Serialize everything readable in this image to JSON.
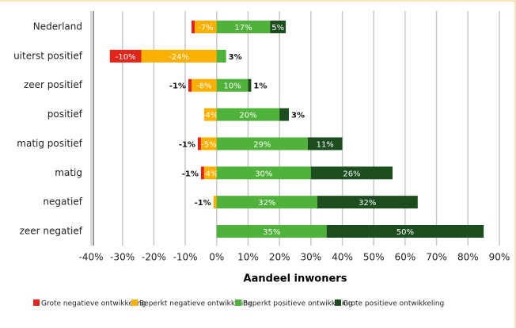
{
  "chart_data": {
    "type": "diverging_stacked_bar",
    "xlabel": "Aandeel inwoners",
    "categories": [
      "Nederland",
      "uiterst positief",
      "zeer positief",
      "positief",
      "matig positief",
      "matig",
      "negatief",
      "zeer negatief"
    ],
    "series": [
      {
        "name": "Grote negatieve ontwikkeling",
        "color": "#e3241b",
        "values": [
          -1,
          -10,
          -1,
          0,
          -1,
          -1,
          0,
          0
        ],
        "value_labels": [
          null,
          "-10%",
          "-1%",
          null,
          "-1%",
          "-1%",
          null,
          null
        ]
      },
      {
        "name": "Beperkt negatieve ontwikkeling",
        "color": "#f9b000",
        "values": [
          -7,
          -24,
          -8,
          -4,
          -5,
          -4,
          -1,
          0
        ],
        "value_labels": [
          "-7%",
          "-24%",
          "-8%",
          "-4%",
          "-5%",
          "-4%",
          "-1%",
          null
        ]
      },
      {
        "name": "Beperkt positieve ontwikkeling",
        "color": "#4fb23a",
        "values": [
          17,
          3,
          10,
          20,
          29,
          30,
          32,
          35
        ],
        "value_labels": [
          "17%",
          "3%",
          "10%",
          "20%",
          "29%",
          "30%",
          "32%",
          "35%"
        ]
      },
      {
        "name": "Grote positieve ontwikkeling",
        "color": "#1b4d1f",
        "values": [
          5,
          0,
          1,
          3,
          11,
          26,
          32,
          50
        ],
        "value_labels": [
          "5%",
          null,
          "1%",
          "3%",
          "11%",
          "26%",
          "32%",
          "50%"
        ]
      }
    ],
    "xlim": [
      -40,
      90
    ],
    "xticks": [
      {
        "value": -40,
        "label": "-40%"
      },
      {
        "value": -30,
        "label": "-30%"
      },
      {
        "value": -20,
        "label": "-20%"
      },
      {
        "value": -10,
        "label": "-10%"
      },
      {
        "value": 0,
        "label": "0%"
      },
      {
        "value": 10,
        "label": "10%"
      },
      {
        "value": 20,
        "label": "20%"
      },
      {
        "value": 30,
        "label": "30%"
      },
      {
        "value": 40,
        "label": "40%"
      },
      {
        "value": 50,
        "label": "50%"
      },
      {
        "value": 60,
        "label": "60%"
      },
      {
        "value": 70,
        "label": "70%"
      },
      {
        "value": 80,
        "label": "80%"
      },
      {
        "value": 90,
        "label": "90%"
      }
    ],
    "grid": true,
    "legend": "bottom"
  }
}
